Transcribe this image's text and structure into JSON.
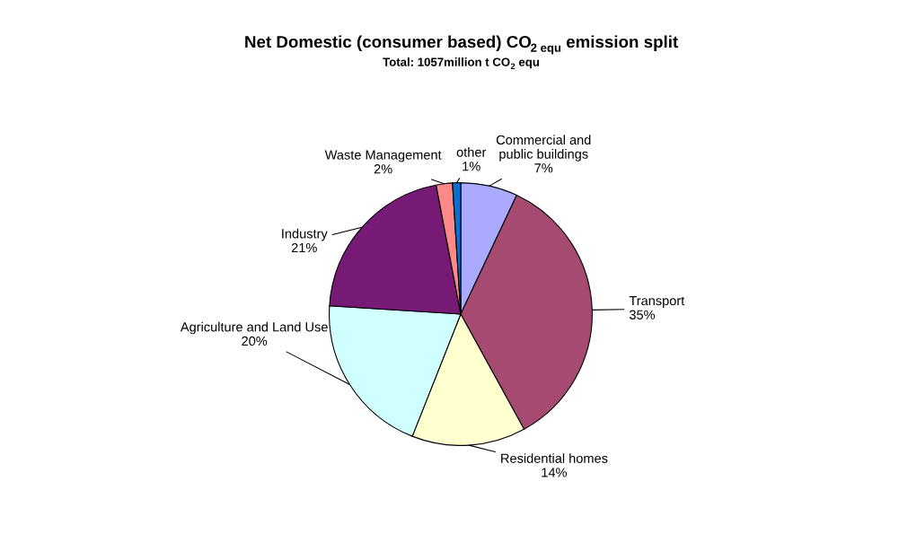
{
  "chart_data": {
    "type": "pie",
    "title": "Net Domestic (consumer based) CO$_{2 equ}$ emission split",
    "subtitle": "Total: 1057million t CO$_{2}$ equ",
    "categories": [
      "Commercial and\npublic buildings",
      "Transport",
      "Residential homes",
      "Agriculture and Land Use",
      "Industry",
      "Waste Management",
      "other"
    ],
    "values": [
      7,
      35,
      14,
      20,
      21,
      2,
      1
    ],
    "colors": [
      "#aaaaff",
      "#a64a72",
      "#ffffd0",
      "#d0ffff",
      "#761a76",
      "#ff8888",
      "#0a6fd0"
    ],
    "value_labels": [
      "7%",
      "35%",
      "14%",
      "20%",
      "21%",
      "2%",
      "1%"
    ],
    "legend": false
  }
}
